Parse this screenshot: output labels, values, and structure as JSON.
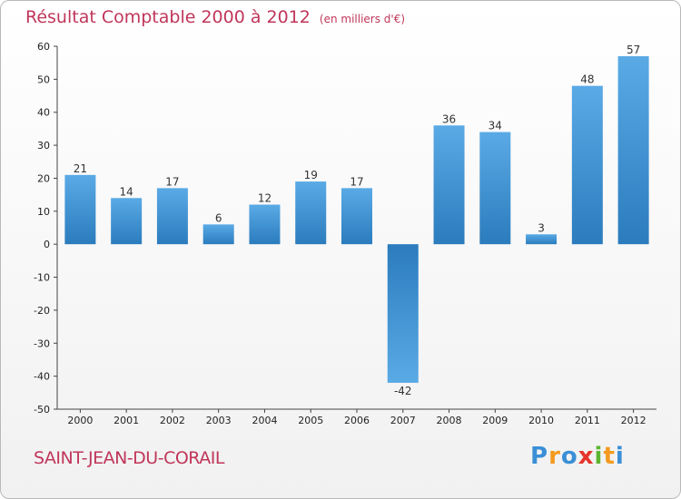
{
  "header": {
    "title": "Résultat Comptable 2000 à 2012",
    "subtitle": "(en milliers d'€)"
  },
  "footer": {
    "commune": "SAINT-JEAN-DU-CORAIL",
    "brand": "Proxiti"
  },
  "colors": {
    "title": "#c0365a",
    "bar_light": "#5aaae6",
    "bar_dark": "#2b7cbd"
  },
  "chart_data": {
    "type": "bar",
    "categories": [
      "2000",
      "2001",
      "2002",
      "2003",
      "2004",
      "2005",
      "2006",
      "2007",
      "2008",
      "2009",
      "2010",
      "2011",
      "2012"
    ],
    "values": [
      21,
      14,
      17,
      6,
      12,
      19,
      17,
      -42,
      36,
      34,
      3,
      48,
      57
    ],
    "title": "Résultat Comptable 2000 à 2012",
    "subtitle": "(en milliers d'€)",
    "xlabel": "",
    "ylabel": "",
    "ylim": [
      -50,
      60
    ],
    "yticks": [
      60,
      50,
      40,
      30,
      20,
      10,
      0,
      -10,
      -20,
      -30,
      -40,
      -50
    ],
    "grid": false,
    "legend": "none"
  }
}
